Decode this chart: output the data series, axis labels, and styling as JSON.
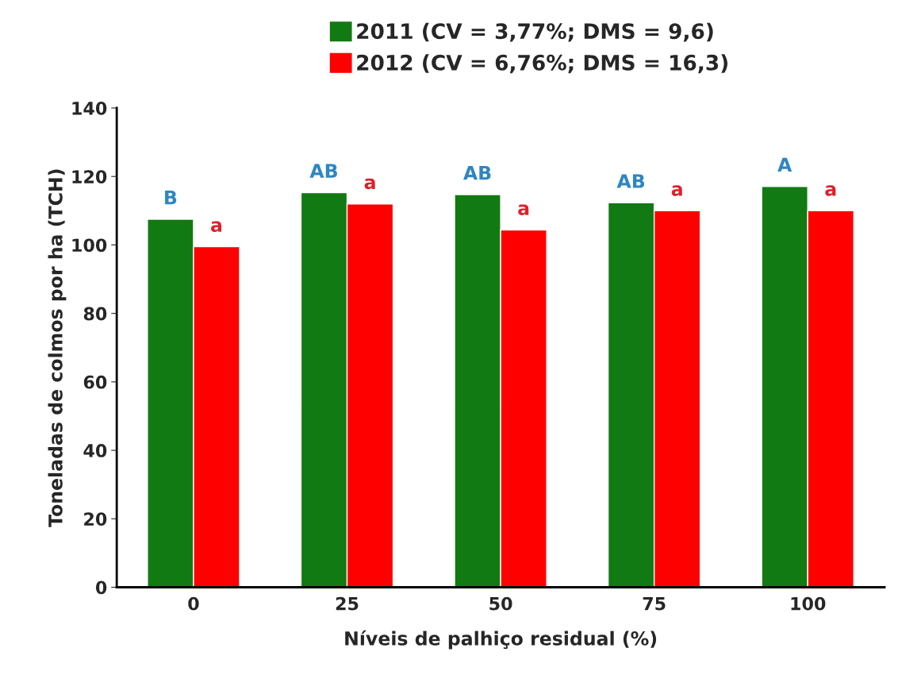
{
  "chart_data": {
    "type": "bar",
    "xlabel": "Níveis de palhiço residual (%)",
    "ylabel": "Toneladas de colmos por ha (TCH)",
    "categories": [
      "0",
      "25",
      "50",
      "75",
      "100"
    ],
    "series": [
      {
        "name": "2011 (CV = 3,77%; DMS = 9,6)",
        "color": "#127a12",
        "values": [
          107.5,
          115.3,
          114.7,
          112.3,
          117.1
        ],
        "value_labels": [
          "B",
          "AB",
          "AB",
          "AB",
          "A"
        ]
      },
      {
        "name": "2012 (CV = 6,76%; DMS = 16,3)",
        "color": "#ff0000",
        "values": [
          99.5,
          112,
          104.4,
          110,
          110
        ],
        "value_labels": [
          "a",
          "a",
          "a",
          "a",
          "a"
        ]
      }
    ],
    "ylim": [
      0,
      140
    ],
    "yticks": [
      0,
      20,
      40,
      60,
      80,
      100,
      120,
      140
    ],
    "grid": false,
    "legend": "top"
  }
}
